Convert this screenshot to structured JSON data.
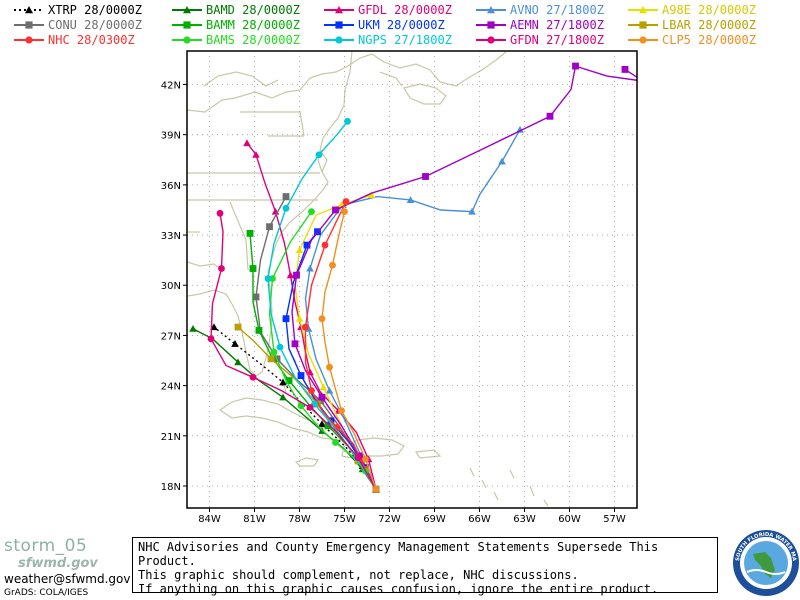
{
  "legend": [
    {
      "label": "XTRP",
      "time": "28/0000Z",
      "color": "#000000",
      "marker": "triangle",
      "dotted": true
    },
    {
      "label": "BAMD",
      "time": "28/0000Z",
      "color": "#007a00",
      "marker": "triangle"
    },
    {
      "label": "GFDL",
      "time": "28/0000Z",
      "color": "#e0007a",
      "marker": "triangle"
    },
    {
      "label": "AVNO",
      "time": "27/1800Z",
      "color": "#4a90d9",
      "marker": "triangle"
    },
    {
      "label": "A98E",
      "time": "28/0000Z",
      "color": "#e8e000",
      "marker": "triangle"
    },
    {
      "label": "CONU",
      "time": "28/0000Z",
      "color": "#6e6e6e",
      "marker": "square"
    },
    {
      "label": "BAMM",
      "time": "28/0000Z",
      "color": "#00b000",
      "marker": "square"
    },
    {
      "label": "UKM",
      "time": "28/0000Z",
      "color": "#0033ff",
      "marker": "square"
    },
    {
      "label": "AEMN",
      "time": "27/1800Z",
      "color": "#a000c8",
      "marker": "square"
    },
    {
      "label": "LBAR",
      "time": "28/0000Z",
      "color": "#b8a000",
      "marker": "square"
    },
    {
      "label": "NHC",
      "time": "28/0300Z",
      "color": "#ff3030",
      "marker": "circle"
    },
    {
      "label": "BAMS",
      "time": "28/0000Z",
      "color": "#22dd22",
      "marker": "circle"
    },
    {
      "label": "NGPS",
      "time": "27/1800Z",
      "color": "#00c8d8",
      "marker": "circle"
    },
    {
      "label": "GFDN",
      "time": "27/1800Z",
      "color": "#e0007a",
      "marker": "circle"
    },
    {
      "label": "CLP5",
      "time": "28/0000Z",
      "color": "#f09020",
      "marker": "circle"
    }
  ],
  "map": {
    "lon_labels": [
      "84W",
      "81W",
      "78W",
      "75W",
      "72W",
      "69W",
      "66W",
      "63W",
      "60W",
      "57W"
    ],
    "lat_labels": [
      "42N",
      "39N",
      "36N",
      "33N",
      "30N",
      "27N",
      "24N",
      "21N",
      "18N"
    ],
    "land_color": "#c8c8a8",
    "grid_color": "#9a9a9a"
  },
  "tracks": [
    {
      "name": "XTRP",
      "color": "#000000",
      "marker": "triangle",
      "dash": "2,3",
      "points": [
        [
          -72.9,
          17.8
        ],
        [
          -73.8,
          19.2
        ],
        [
          -75.0,
          20.4
        ],
        [
          -76.5,
          21.7
        ],
        [
          -77.8,
          22.9
        ],
        [
          -79.1,
          24.2
        ],
        [
          -80.6,
          25.3
        ],
        [
          -82.3,
          26.5
        ],
        [
          -83.7,
          27.5
        ]
      ]
    },
    {
      "name": "BAMD",
      "color": "#007a00",
      "marker": "triangle",
      "points": [
        [
          -72.9,
          17.8
        ],
        [
          -73.8,
          19.0
        ],
        [
          -75.0,
          20.2
        ],
        [
          -76.5,
          21.3
        ],
        [
          -77.8,
          22.3
        ],
        [
          -79.1,
          23.3
        ],
        [
          -80.7,
          24.3
        ],
        [
          -82.1,
          25.4
        ],
        [
          -83.8,
          26.8
        ],
        [
          -85.1,
          27.4
        ]
      ]
    },
    {
      "name": "GFDL",
      "color": "#e0007a",
      "marker": "triangle",
      "points": [
        [
          -72.9,
          17.8
        ],
        [
          -73.4,
          19.6
        ],
        [
          -74.2,
          21.2
        ],
        [
          -75.4,
          22.5
        ],
        [
          -76.6,
          23.6
        ],
        [
          -77.3,
          24.8
        ],
        [
          -77.6,
          26.0
        ],
        [
          -77.9,
          27.5
        ],
        [
          -78.3,
          29.0
        ],
        [
          -78.6,
          30.6
        ],
        [
          -79.0,
          32.5
        ],
        [
          -79.6,
          34.4
        ],
        [
          -80.3,
          36.1
        ],
        [
          -80.9,
          37.8
        ],
        [
          -81.5,
          38.5
        ]
      ]
    },
    {
      "name": "AVNO",
      "color": "#4a90d9",
      "marker": "triangle",
      "points": [
        [
          -72.9,
          17.8
        ],
        [
          -73.9,
          19.8
        ],
        [
          -74.9,
          21.8
        ],
        [
          -76.0,
          23.7
        ],
        [
          -76.9,
          25.6
        ],
        [
          -77.4,
          27.4
        ],
        [
          -77.6,
          29.2
        ],
        [
          -77.3,
          31.0
        ],
        [
          -76.6,
          33.0
        ],
        [
          -75.1,
          34.8
        ],
        [
          -72.8,
          35.3
        ],
        [
          -70.6,
          35.1
        ],
        [
          -68.6,
          34.5
        ],
        [
          -66.5,
          34.4
        ],
        [
          -66.0,
          35.4
        ],
        [
          -64.5,
          37.4
        ],
        [
          -63.3,
          39.3
        ]
      ]
    },
    {
      "name": "A98E",
      "color": "#e8e000",
      "marker": "triangle",
      "points": [
        [
          -72.9,
          17.8
        ],
        [
          -74.1,
          19.8
        ],
        [
          -75.3,
          21.8
        ],
        [
          -76.4,
          23.9
        ],
        [
          -77.4,
          25.9
        ],
        [
          -78.0,
          28.0
        ],
        [
          -78.3,
          30.0
        ],
        [
          -78.0,
          32.1
        ],
        [
          -76.9,
          34.2
        ],
        [
          -75.2,
          34.8
        ],
        [
          -73.2,
          35.4
        ]
      ]
    },
    {
      "name": "CONU",
      "color": "#6e6e6e",
      "marker": "square",
      "points": [
        [
          -72.9,
          17.8
        ],
        [
          -74.0,
          19.7
        ],
        [
          -75.3,
          21.5
        ],
        [
          -76.6,
          23.1
        ],
        [
          -78.1,
          24.3
        ],
        [
          -79.5,
          25.6
        ],
        [
          -80.6,
          27.2
        ],
        [
          -80.9,
          29.3
        ],
        [
          -80.6,
          31.5
        ],
        [
          -80.0,
          33.5
        ],
        [
          -78.9,
          35.3
        ]
      ]
    },
    {
      "name": "BAMM",
      "color": "#00b000",
      "marker": "square",
      "points": [
        [
          -72.9,
          17.8
        ],
        [
          -73.7,
          19.1
        ],
        [
          -74.8,
          20.4
        ],
        [
          -76.1,
          21.6
        ],
        [
          -77.4,
          22.9
        ],
        [
          -78.7,
          24.3
        ],
        [
          -79.9,
          25.8
        ],
        [
          -80.7,
          27.3
        ],
        [
          -81.1,
          29.0
        ],
        [
          -81.1,
          31.0
        ],
        [
          -81.3,
          33.1
        ]
      ]
    },
    {
      "name": "UKM",
      "color": "#0033ff",
      "marker": "square",
      "points": [
        [
          -72.9,
          17.8
        ],
        [
          -73.6,
          19.1
        ],
        [
          -74.6,
          20.5
        ],
        [
          -75.9,
          21.9
        ],
        [
          -77.0,
          23.2
        ],
        [
          -77.9,
          24.6
        ],
        [
          -78.7,
          26.2
        ],
        [
          -78.9,
          28.0
        ],
        [
          -78.4,
          30.2
        ],
        [
          -77.5,
          32.4
        ],
        [
          -76.8,
          33.2
        ]
      ]
    },
    {
      "name": "AEMN",
      "color": "#a000c8",
      "marker": "square",
      "points": [
        [
          -72.9,
          17.8
        ],
        [
          -74.0,
          19.8
        ],
        [
          -75.2,
          21.6
        ],
        [
          -76.5,
          23.3
        ],
        [
          -77.6,
          24.9
        ],
        [
          -78.3,
          26.5
        ],
        [
          -78.5,
          28.4
        ],
        [
          -78.2,
          30.6
        ],
        [
          -77.2,
          32.7
        ],
        [
          -75.6,
          34.5
        ],
        [
          -73.2,
          35.5
        ],
        [
          -69.6,
          36.5
        ],
        [
          -65.2,
          38.4
        ],
        [
          -61.3,
          40.1
        ],
        [
          -59.9,
          41.7
        ],
        [
          -59.6,
          43.1
        ],
        [
          -57.5,
          42.5
        ],
        [
          -55.1,
          42.2
        ],
        [
          -56.3,
          42.9
        ]
      ]
    },
    {
      "name": "LBAR",
      "color": "#b8a000",
      "marker": "square",
      "points": [
        [
          -72.9,
          17.8
        ],
        [
          -74.1,
          19.5
        ],
        [
          -75.4,
          21.2
        ],
        [
          -76.8,
          22.9
        ],
        [
          -78.3,
          24.4
        ],
        [
          -79.9,
          25.6
        ],
        [
          -81.1,
          26.7
        ],
        [
          -82.1,
          27.5
        ]
      ]
    },
    {
      "name": "NHC",
      "color": "#ff3030",
      "marker": "circle",
      "points": [
        [
          -72.9,
          17.8
        ],
        [
          -73.6,
          19.0
        ],
        [
          -74.4,
          20.5
        ],
        [
          -75.5,
          21.5
        ],
        [
          -76.5,
          22.5
        ],
        [
          -77.2,
          23.7
        ],
        [
          -77.6,
          25.4
        ],
        [
          -77.6,
          27.5
        ],
        [
          -77.2,
          30.0
        ],
        [
          -76.3,
          32.4
        ],
        [
          -74.9,
          35.0
        ]
      ]
    },
    {
      "name": "BAMS",
      "color": "#22dd22",
      "marker": "circle",
      "points": [
        [
          -72.9,
          17.8
        ],
        [
          -73.6,
          18.9
        ],
        [
          -74.5,
          19.8
        ],
        [
          -75.6,
          20.6
        ],
        [
          -76.8,
          21.6
        ],
        [
          -77.9,
          22.8
        ],
        [
          -78.9,
          24.3
        ],
        [
          -79.7,
          26.0
        ],
        [
          -80.0,
          28.3
        ],
        [
          -79.8,
          30.4
        ],
        [
          -78.6,
          32.6
        ],
        [
          -77.2,
          34.4
        ]
      ]
    },
    {
      "name": "NGPS",
      "color": "#00c8d8",
      "marker": "circle",
      "points": [
        [
          -72.9,
          17.8
        ],
        [
          -74.2,
          19.7
        ],
        [
          -75.6,
          21.4
        ],
        [
          -77.0,
          22.9
        ],
        [
          -78.3,
          24.5
        ],
        [
          -79.3,
          26.3
        ],
        [
          -79.9,
          28.3
        ],
        [
          -80.1,
          30.4
        ],
        [
          -79.7,
          32.5
        ],
        [
          -78.9,
          34.6
        ],
        [
          -77.8,
          36.4
        ],
        [
          -76.7,
          37.8
        ],
        [
          -75.5,
          39.0
        ],
        [
          -74.8,
          39.8
        ]
      ]
    },
    {
      "name": "GFDN",
      "color": "#e0007a",
      "marker": "circle",
      "points": [
        [
          -72.9,
          17.8
        ],
        [
          -74.1,
          19.7
        ],
        [
          -75.6,
          21.3
        ],
        [
          -77.3,
          22.7
        ],
        [
          -79.2,
          23.7
        ],
        [
          -81.1,
          24.5
        ],
        [
          -82.9,
          25.2
        ],
        [
          -83.9,
          26.8
        ],
        [
          -83.8,
          28.9
        ],
        [
          -83.2,
          31.0
        ],
        [
          -83.1,
          33.2
        ],
        [
          -83.3,
          34.3
        ]
      ]
    },
    {
      "name": "CLP5",
      "color": "#f09020",
      "marker": "circle",
      "points": [
        [
          -72.9,
          17.8
        ],
        [
          -73.6,
          19.6
        ],
        [
          -74.4,
          21.2
        ],
        [
          -75.2,
          22.5
        ],
        [
          -75.6,
          23.8
        ],
        [
          -76.0,
          25.1
        ],
        [
          -76.3,
          26.6
        ],
        [
          -76.5,
          28.0
        ],
        [
          -76.3,
          29.6
        ],
        [
          -75.8,
          31.2
        ],
        [
          -75.4,
          32.9
        ],
        [
          -75.0,
          34.4
        ]
      ]
    }
  ],
  "footer": {
    "storm_name": "storm_05",
    "site": "sfwmd.gov",
    "email": "weather@sfwmd.gov",
    "grads": "GrADS: COLA/IGES",
    "disclaimer": [
      "NHC Advisories and County Emergency Management Statements Supersede This Product.",
      "This graphic should complement, not replace, NHC discussions.",
      "If anything on this graphic causes confusion, ignore the entire product."
    ],
    "seal_text": "SOUTH FLORIDA WATER MANAGEMENT DISTRICT"
  }
}
